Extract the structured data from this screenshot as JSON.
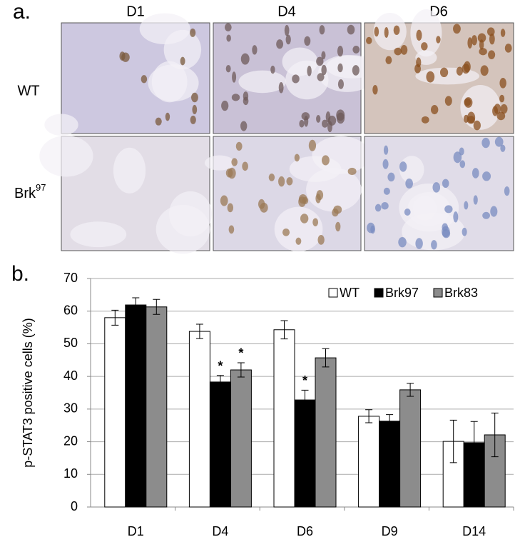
{
  "panel_a": {
    "label": "a.",
    "columns": [
      "D1",
      "D4",
      "D6"
    ],
    "rows": [
      {
        "text": "WT"
      },
      {
        "text": "Brk",
        "sup": "97"
      }
    ]
  },
  "chart_data": {
    "type": "bar",
    "panel_label": "b.",
    "ylabel": "p-STAT3 positive cells (%)",
    "categories": [
      "D1",
      "D4",
      "D6",
      "D9",
      "D14"
    ],
    "series": [
      {
        "name": "WT",
        "color": "#ffffff",
        "values": [
          58.0,
          53.8,
          54.3,
          27.8,
          20.1
        ],
        "errors": [
          2.3,
          2.2,
          2.8,
          2.0,
          6.5
        ],
        "annotations": [
          null,
          null,
          null,
          null,
          null
        ]
      },
      {
        "name": "Brk97",
        "color": "#000000",
        "values": [
          61.9,
          38.3,
          32.8,
          26.3,
          19.7
        ],
        "errors": [
          2.2,
          2.0,
          3.0,
          2.0,
          6.5
        ],
        "annotations": [
          null,
          "*",
          "*",
          null,
          null
        ]
      },
      {
        "name": "Brk83",
        "color": "#8c8c8c",
        "values": [
          61.3,
          42.0,
          45.7,
          35.9,
          22.1
        ],
        "errors": [
          2.3,
          2.2,
          2.8,
          2.0,
          6.7
        ],
        "annotations": [
          null,
          "*",
          null,
          null,
          null
        ]
      }
    ],
    "edgecolor": "#000000",
    "ylim": [
      0,
      70
    ],
    "yticks": [
      0,
      10,
      20,
      30,
      40,
      50,
      60,
      70
    ],
    "grid": true,
    "legend": "top-right"
  }
}
